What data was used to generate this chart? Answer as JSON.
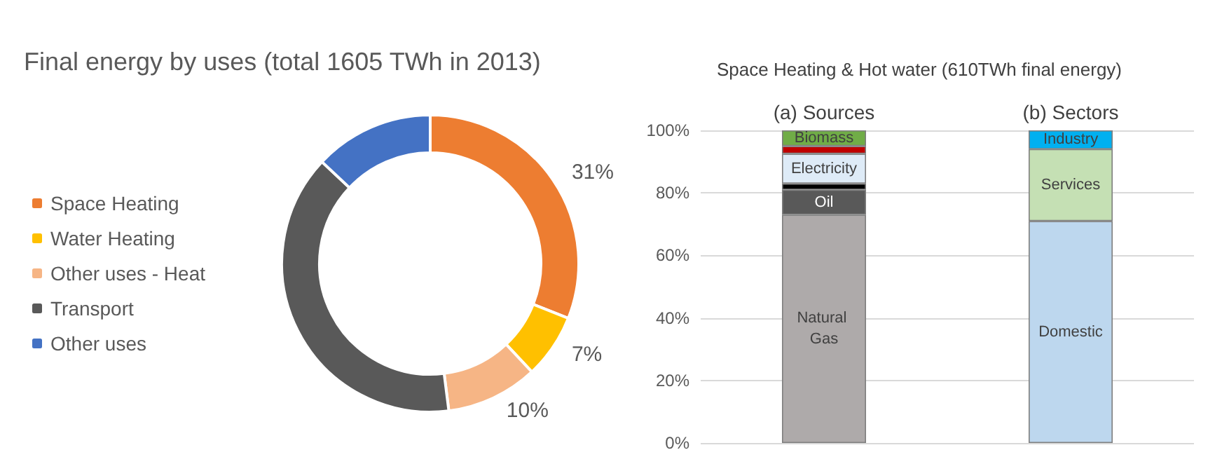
{
  "chart_data": [
    {
      "type": "donut",
      "title": "Final energy by uses (total 1605 TWh in 2013)",
      "categories": [
        "Space Heating",
        "Water Heating",
        "Other uses - Heat",
        "Transport",
        "Other uses"
      ],
      "values": [
        31,
        7,
        10,
        39,
        13
      ],
      "colors": [
        "#ed7d31",
        "#ffc000",
        "#f6b585",
        "#595959",
        "#4472c4"
      ],
      "value_labels": [
        "31%",
        "7%",
        "10%",
        null,
        null
      ],
      "legend": "left"
    },
    {
      "type": "bar",
      "stacked": true,
      "title": "Space Heating & Hot water (610TWh final energy)",
      "categories": [
        "(a) Sources",
        "(b) Sectors"
      ],
      "ylim": [
        0,
        100
      ],
      "yticks": [
        {
          "value": 0,
          "label": "0%"
        },
        {
          "value": 20,
          "label": "20%"
        },
        {
          "value": 40,
          "label": "40%"
        },
        {
          "value": 60,
          "label": "60%"
        },
        {
          "value": 80,
          "label": "80%"
        },
        {
          "value": 100,
          "label": "100%"
        }
      ],
      "grid": "y",
      "series": [
        {
          "name": "Natural Gas",
          "color": "#aeaaaa",
          "values": [
            73,
            null
          ]
        },
        {
          "name": "Oil",
          "color": "#595959",
          "values": [
            8,
            null
          ]
        },
        {
          "color": "#000000",
          "values": [
            2,
            null
          ]
        },
        {
          "name": "Electricity",
          "color": "#deebf7",
          "values": [
            9.5,
            null
          ]
        },
        {
          "color": "#c00000",
          "values": [
            2.5,
            null
          ]
        },
        {
          "name": "Biomass",
          "color": "#70ad47",
          "values": [
            5,
            null
          ]
        },
        {
          "name": "Domestic",
          "color": "#bdd7ee",
          "values": [
            null,
            71
          ]
        },
        {
          "name": "Services",
          "color": "#c5e0b4",
          "values": [
            null,
            23
          ]
        },
        {
          "name": "Industry",
          "color": "#00b0f0",
          "values": [
            null,
            6
          ]
        }
      ]
    }
  ]
}
